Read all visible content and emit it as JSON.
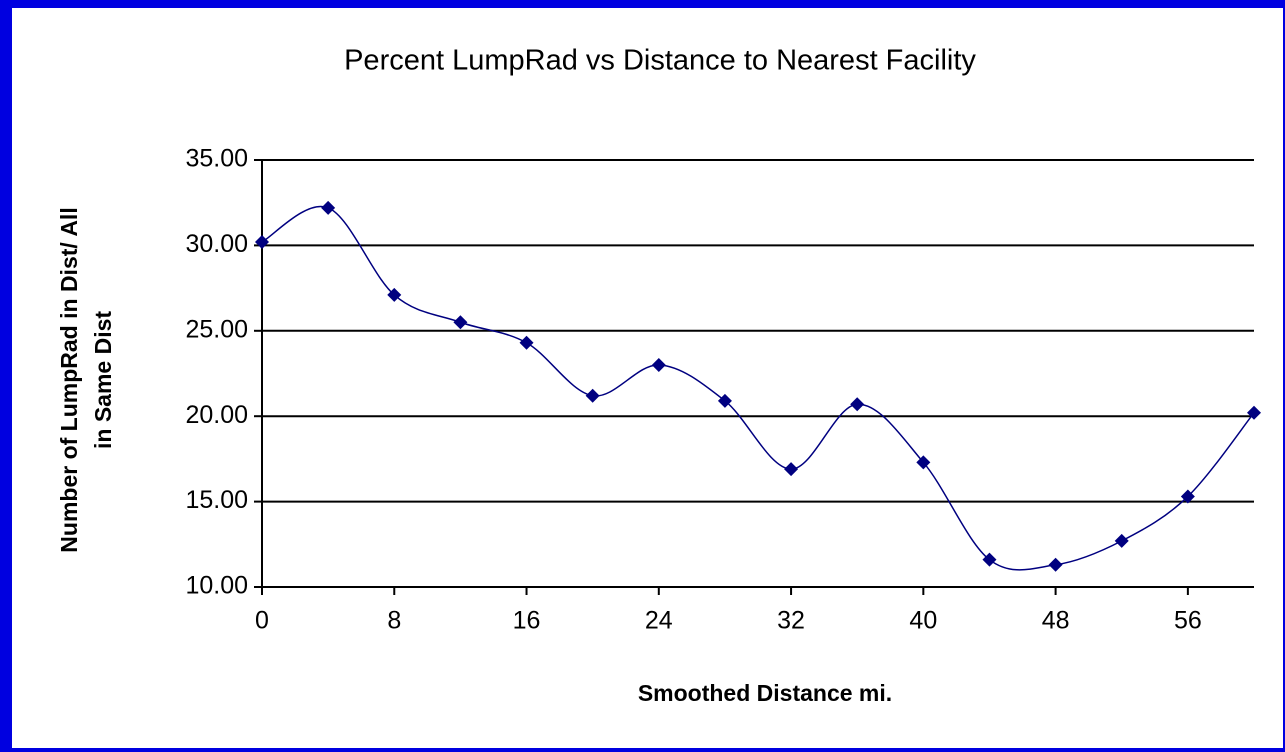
{
  "chart_data": {
    "type": "line",
    "title": "Percent LumpRad vs Distance to Nearest Facility",
    "x_label": "Smoothed Distance mi.",
    "y_label": [
      "Number of LumpRad in Dist/ All",
      "in Same Dist"
    ],
    "x": [
      0,
      4,
      8,
      12,
      16,
      20,
      24,
      28,
      32,
      36,
      40,
      44,
      48,
      52,
      56,
      60
    ],
    "series": [
      {
        "color": "#000080",
        "values": [
          30.2,
          32.2,
          27.1,
          25.5,
          24.3,
          21.2,
          23.0,
          20.9,
          16.9,
          20.7,
          17.3,
          11.6,
          11.3,
          12.7,
          15.3,
          20.2
        ]
      }
    ],
    "xlim": [
      0,
      60
    ],
    "xticks": [
      0,
      8,
      16,
      24,
      32,
      40,
      48,
      56
    ],
    "ylim": [
      10,
      35
    ],
    "yticks": [
      {
        "value": 10,
        "label": "10.00"
      },
      {
        "value": 15,
        "label": "15.00"
      },
      {
        "value": 20,
        "label": "20.00"
      },
      {
        "value": 25,
        "label": "25.00"
      },
      {
        "value": 30,
        "label": "30.00"
      },
      {
        "value": 35,
        "label": "35.00"
      }
    ],
    "grid": true,
    "smooth": true
  }
}
